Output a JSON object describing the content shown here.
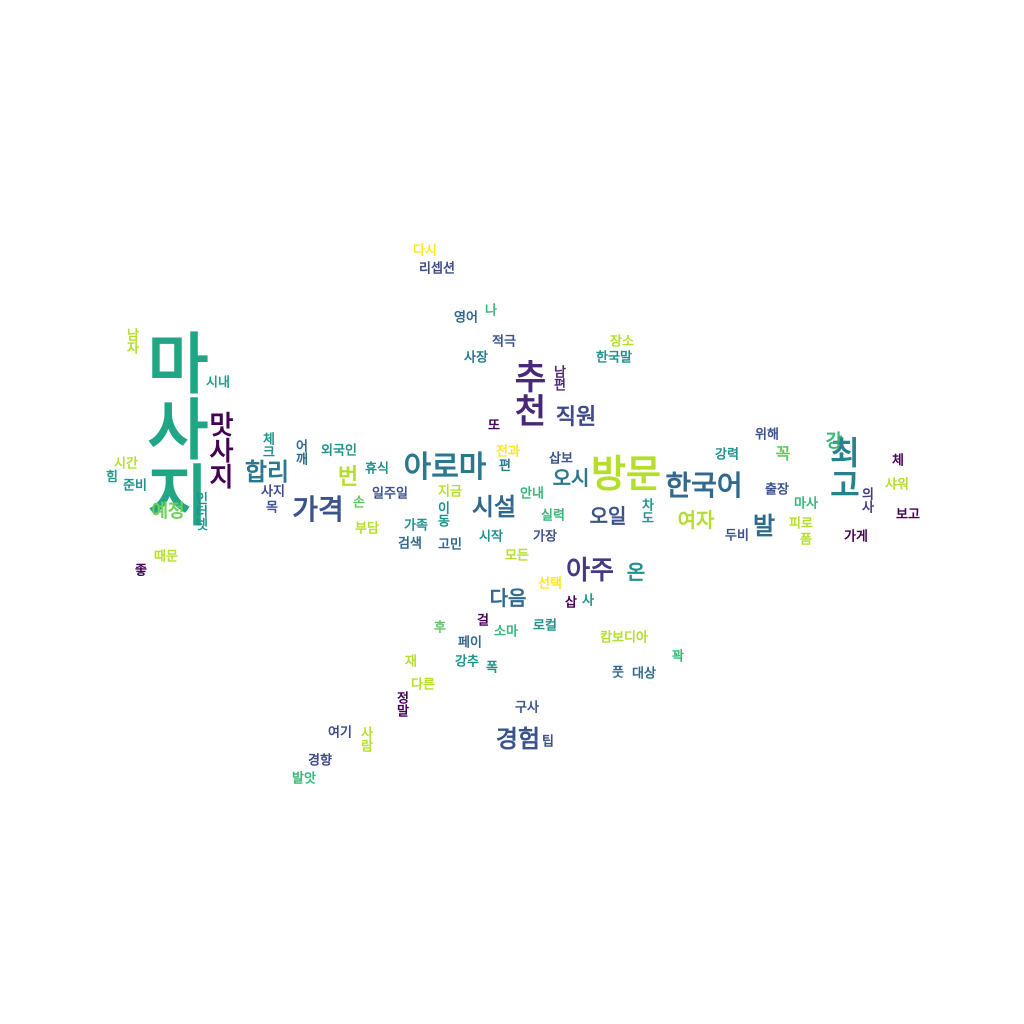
{
  "colors": {
    "background": "#ffffff",
    "viridis": [
      "#440154",
      "#3b528b",
      "#21918c",
      "#2cb07f",
      "#5ec962",
      "#b5de2b",
      "#fde725"
    ]
  },
  "words": [
    {
      "text": "마사지",
      "color": "#21a685"
    },
    {
      "text": "방문",
      "color": "#b5de2b"
    },
    {
      "text": "추천",
      "color": "#482878"
    },
    {
      "text": "아로마",
      "color": "#2a788e"
    },
    {
      "text": "최고",
      "color": "#26828e"
    },
    {
      "text": "가격",
      "color": "#3b528b"
    },
    {
      "text": "한국어",
      "color": "#31688e"
    },
    {
      "text": "맛사지",
      "color": "#440154"
    },
    {
      "text": "아주",
      "color": "#443983"
    },
    {
      "text": "경험",
      "color": "#3b528b"
    },
    {
      "text": "합리",
      "color": "#2a788e"
    },
    {
      "text": "시설",
      "color": "#31688e"
    },
    {
      "text": "직원",
      "color": "#3e4989"
    },
    {
      "text": "발",
      "color": "#31688e"
    },
    {
      "text": "번",
      "color": "#b5de2b"
    },
    {
      "text": "여자",
      "color": "#b5de2b"
    },
    {
      "text": "오일",
      "color": "#3b528b"
    },
    {
      "text": "오시",
      "color": "#2a788e"
    },
    {
      "text": "다음",
      "color": "#31688e"
    },
    {
      "text": "예정",
      "color": "#6ece58"
    },
    {
      "text": "온",
      "color": "#21918c"
    },
    {
      "text": "강",
      "color": "#35b779"
    },
    {
      "text": "꼭",
      "color": "#5ec962"
    },
    {
      "text": "남자",
      "color": "#b5de2b"
    },
    {
      "text": "다시",
      "color": "#fde725"
    },
    {
      "text": "리셉션",
      "color": "#3e4989"
    },
    {
      "text": "영어",
      "color": "#31688e"
    },
    {
      "text": "나",
      "color": "#35b779"
    },
    {
      "text": "적극",
      "color": "#3b528b"
    },
    {
      "text": "사장",
      "color": "#2a788e"
    },
    {
      "text": "장소",
      "color": "#b5de2b"
    },
    {
      "text": "한국말",
      "color": "#21918c"
    },
    {
      "text": "남편",
      "color": "#482878"
    },
    {
      "text": "시내",
      "color": "#1f9e89"
    },
    {
      "text": "체크",
      "color": "#21918c"
    },
    {
      "text": "어깨",
      "color": "#31688e"
    },
    {
      "text": "외국인",
      "color": "#21918c"
    },
    {
      "text": "또",
      "color": "#440154"
    },
    {
      "text": "전과",
      "color": "#fde725"
    },
    {
      "text": "편",
      "color": "#2a788e"
    },
    {
      "text": "삽보",
      "color": "#3b528b"
    },
    {
      "text": "위해",
      "color": "#3b528b"
    },
    {
      "text": "강력",
      "color": "#21918c"
    },
    {
      "text": "체",
      "color": "#440154"
    },
    {
      "text": "시간",
      "color": "#b5de2b"
    },
    {
      "text": "힘",
      "color": "#1f9e89"
    },
    {
      "text": "준비",
      "color": "#21918c"
    },
    {
      "text": "휴식",
      "color": "#21918c"
    },
    {
      "text": "사지",
      "color": "#3e4989"
    },
    {
      "text": "일주일",
      "color": "#3b528b"
    },
    {
      "text": "지금",
      "color": "#b5de2b"
    },
    {
      "text": "안내",
      "color": "#35b779"
    },
    {
      "text": "출장",
      "color": "#3b528b"
    },
    {
      "text": "마사",
      "color": "#35b779"
    },
    {
      "text": "샤워",
      "color": "#b5de2b"
    },
    {
      "text": "의사",
      "color": "#443983"
    },
    {
      "text": "인터넷",
      "color": "#21918c"
    },
    {
      "text": "목",
      "color": "#3b528b"
    },
    {
      "text": "손",
      "color": "#5ec962"
    },
    {
      "text": "부담",
      "color": "#b5de2b"
    },
    {
      "text": "가족",
      "color": "#21918c"
    },
    {
      "text": "이동",
      "color": "#21918c"
    },
    {
      "text": "실력",
      "color": "#35b779"
    },
    {
      "text": "차도",
      "color": "#21918c"
    },
    {
      "text": "피로",
      "color": "#b5de2b"
    },
    {
      "text": "보고",
      "color": "#440154"
    },
    {
      "text": "검색",
      "color": "#31688e"
    },
    {
      "text": "고민",
      "color": "#31688e"
    },
    {
      "text": "시작",
      "color": "#21918c"
    },
    {
      "text": "가장",
      "color": "#3b528b"
    },
    {
      "text": "두비",
      "color": "#3b528b"
    },
    {
      "text": "폼",
      "color": "#b5de2b"
    },
    {
      "text": "가게",
      "color": "#440154"
    },
    {
      "text": "때문",
      "color": "#b5de2b"
    },
    {
      "text": "좋",
      "color": "#440154"
    },
    {
      "text": "모든",
      "color": "#b5de2b"
    },
    {
      "text": "선택",
      "color": "#fde725"
    },
    {
      "text": "삽",
      "color": "#440154"
    },
    {
      "text": "사",
      "color": "#21918c"
    },
    {
      "text": "후",
      "color": "#5ec962"
    },
    {
      "text": "걸",
      "color": "#440154"
    },
    {
      "text": "로컬",
      "color": "#21918c"
    },
    {
      "text": "소마",
      "color": "#35b779"
    },
    {
      "text": "페이",
      "color": "#31688e"
    },
    {
      "text": "캄보디아",
      "color": "#b5de2b"
    },
    {
      "text": "꽉",
      "color": "#35b779"
    },
    {
      "text": "재",
      "color": "#b5de2b"
    },
    {
      "text": "강추",
      "color": "#21918c"
    },
    {
      "text": "폭",
      "color": "#21918c"
    },
    {
      "text": "풋",
      "color": "#31688e"
    },
    {
      "text": "대상",
      "color": "#31688e"
    },
    {
      "text": "다른",
      "color": "#b5de2b"
    },
    {
      "text": "정말",
      "color": "#440154"
    },
    {
      "text": "구사",
      "color": "#3b528b"
    },
    {
      "text": "여기",
      "color": "#3e4989"
    },
    {
      "text": "사람",
      "color": "#b5de2b"
    },
    {
      "text": "팁",
      "color": "#3b528b"
    },
    {
      "text": "경향",
      "color": "#3e4989"
    },
    {
      "text": "발앗",
      "color": "#35b779"
    }
  ]
}
